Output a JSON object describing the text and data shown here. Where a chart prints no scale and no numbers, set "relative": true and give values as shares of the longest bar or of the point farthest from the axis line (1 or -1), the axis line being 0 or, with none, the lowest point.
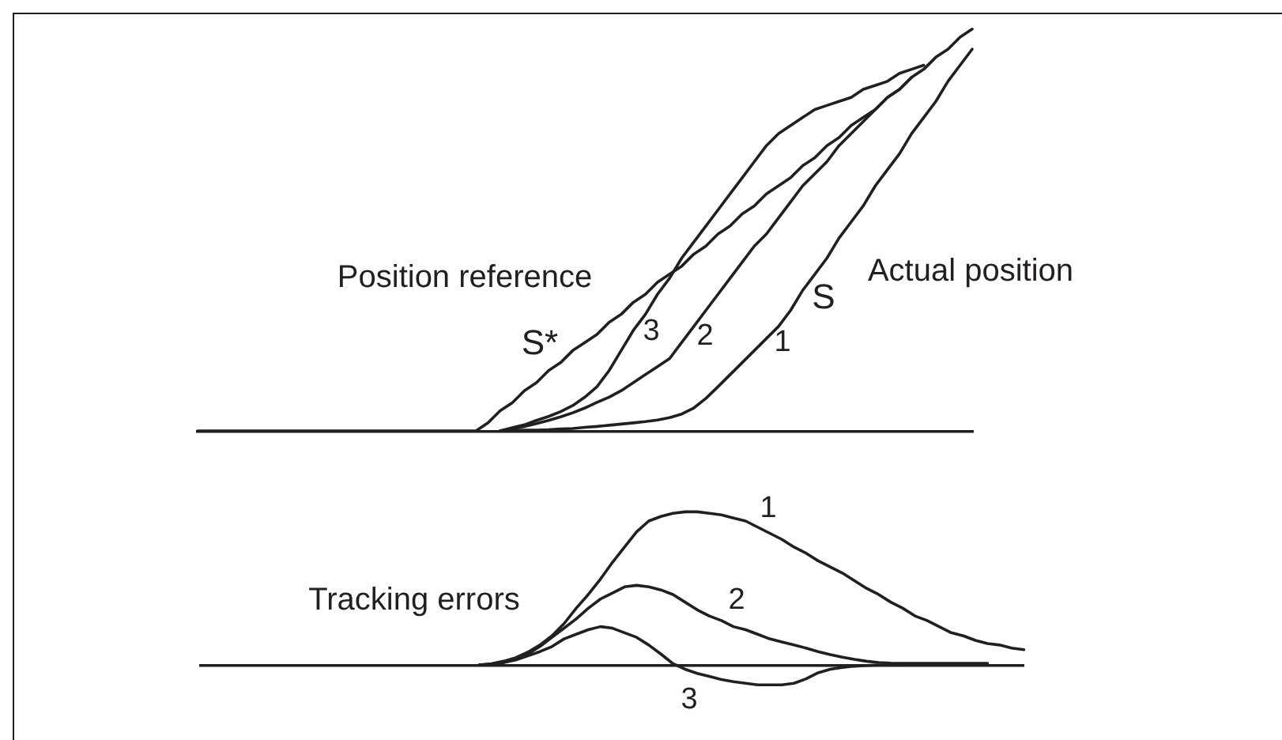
{
  "chart_data": [
    {
      "type": "line",
      "relative": true,
      "tick_labels": false,
      "categories": [
        null,
        null,
        null,
        null,
        null,
        null,
        null,
        null,
        null,
        null,
        null,
        null,
        null,
        null,
        null,
        null,
        null,
        null,
        null,
        null,
        null,
        null,
        null,
        null,
        null,
        null,
        null,
        null,
        null,
        null,
        null,
        null,
        null,
        null,
        null,
        null,
        null,
        null,
        null,
        null,
        null,
        null,
        null,
        null,
        null,
        null,
        null,
        null,
        null,
        null,
        null,
        null,
        null,
        null,
        null,
        null,
        null,
        null,
        null,
        null,
        null,
        null,
        null,
        null,
        null
      ],
      "series": [
        {
          "name": "S*",
          "color": "#231f20",
          "values": [
            0,
            0,
            0,
            0,
            0,
            0,
            0,
            0,
            0,
            0,
            0,
            0,
            0,
            0,
            0,
            0,
            0,
            0,
            0,
            0,
            0,
            0,
            0,
            0,
            0.02,
            0.05,
            0.07,
            0.1,
            0.12,
            0.15,
            0.17,
            0.2,
            0.22,
            0.24,
            0.27,
            0.29,
            0.32,
            0.34,
            0.37,
            0.39,
            0.41,
            0.44,
            0.46,
            0.49,
            0.51,
            0.54,
            0.56,
            0.59,
            0.61,
            0.63,
            0.66,
            0.68,
            0.71,
            0.73,
            0.76,
            0.78,
            0.8,
            0.83,
            0.85,
            0.88,
            0.9,
            0.93,
            0.95,
            0.98,
            1
          ]
        },
        {
          "name": "1",
          "color": "#231f20",
          "values": [
            null,
            null,
            null,
            null,
            null,
            null,
            null,
            null,
            null,
            null,
            null,
            null,
            null,
            null,
            null,
            null,
            null,
            null,
            null,
            null,
            null,
            null,
            null,
            null,
            null,
            0,
            0.001,
            0.002,
            0.002,
            0.003,
            0.005,
            0.006,
            0.009,
            0.011,
            0.014,
            0.017,
            0.02,
            0.023,
            0.027,
            0.033,
            0.042,
            0.057,
            0.081,
            0.11,
            0.14,
            0.17,
            0.2,
            0.23,
            0.26,
            0.3,
            0.35,
            0.39,
            0.43,
            0.48,
            0.52,
            0.56,
            0.61,
            0.65,
            0.69,
            0.74,
            0.78,
            0.82,
            0.87,
            0.91,
            0.95
          ]
        },
        {
          "name": "2",
          "color": "#231f20",
          "values": [
            null,
            null,
            null,
            null,
            null,
            null,
            null,
            null,
            null,
            null,
            null,
            null,
            null,
            null,
            null,
            null,
            null,
            null,
            null,
            null,
            null,
            null,
            null,
            null,
            null,
            0,
            0.005,
            0.011,
            0.018,
            0.026,
            0.035,
            0.045,
            0.057,
            0.071,
            0.084,
            0.1,
            0.12,
            0.14,
            0.16,
            0.18,
            0.22,
            0.26,
            0.3,
            0.34,
            0.38,
            0.42,
            0.46,
            0.49,
            0.53,
            0.57,
            0.61,
            0.64,
            0.67,
            0.71,
            0.74,
            0.77,
            0.8,
            0.83,
            0.85,
            0.88,
            null,
            null,
            null,
            null,
            null
          ]
        },
        {
          "name": "3",
          "color": "#231f20",
          "values": [
            null,
            null,
            null,
            null,
            null,
            null,
            null,
            null,
            null,
            null,
            null,
            null,
            null,
            null,
            null,
            null,
            null,
            null,
            null,
            null,
            null,
            null,
            null,
            null,
            null,
            0,
            0.008,
            0.015,
            0.026,
            0.036,
            0.048,
            0.063,
            0.084,
            0.11,
            0.15,
            0.2,
            0.25,
            0.29,
            0.34,
            0.38,
            0.43,
            0.47,
            0.51,
            0.55,
            0.59,
            0.63,
            0.67,
            0.71,
            0.74,
            0.76,
            0.78,
            0.8,
            0.81,
            0.82,
            0.83,
            0.85,
            0.86,
            0.87,
            0.89,
            0.9,
            0.91,
            null,
            null,
            null,
            null
          ]
        }
      ],
      "annotations": [
        "Position reference",
        "Actual position",
        "S"
      ]
    },
    {
      "type": "line",
      "relative": true,
      "tick_labels": false,
      "categories": [
        null,
        null,
        null,
        null,
        null,
        null,
        null,
        null,
        null,
        null,
        null,
        null,
        null,
        null,
        null,
        null,
        null,
        null,
        null,
        null,
        null,
        null,
        null,
        null,
        null,
        null,
        null,
        null,
        null,
        null,
        null,
        null,
        null,
        null,
        null,
        null,
        null,
        null,
        null,
        null,
        null,
        null,
        null,
        null,
        null,
        null,
        null,
        null,
        null,
        null,
        null,
        null,
        null,
        null,
        null,
        null,
        null,
        null,
        null,
        null,
        null,
        null,
        null,
        null,
        null,
        null,
        null,
        null,
        null
      ],
      "series": [
        {
          "name": "1",
          "color": "#231f20",
          "values": [
            null,
            null,
            null,
            null,
            null,
            null,
            null,
            null,
            null,
            null,
            null,
            null,
            null,
            null,
            null,
            null,
            null,
            null,
            null,
            null,
            null,
            null,
            null,
            0,
            0.008,
            0.024,
            0.047,
            0.083,
            0.13,
            0.19,
            0.27,
            0.37,
            0.46,
            0.56,
            0.67,
            0.77,
            0.87,
            0.94,
            0.97,
            0.99,
            1,
            1,
            0.99,
            0.98,
            0.96,
            0.94,
            0.9,
            0.86,
            0.82,
            0.77,
            0.73,
            0.68,
            0.64,
            0.6,
            0.55,
            0.5,
            0.46,
            0.41,
            0.37,
            0.32,
            0.29,
            0.25,
            0.21,
            0.19,
            0.16,
            0.14,
            0.13,
            0.11,
            0.1
          ]
        },
        {
          "name": "2",
          "color": "#231f20",
          "values": [
            null,
            null,
            null,
            null,
            null,
            null,
            null,
            null,
            null,
            null,
            null,
            null,
            null,
            null,
            null,
            null,
            null,
            null,
            null,
            null,
            null,
            null,
            null,
            0,
            0.004,
            0.016,
            0.04,
            0.071,
            0.12,
            0.18,
            0.24,
            0.3,
            0.37,
            0.43,
            0.47,
            0.51,
            0.52,
            0.51,
            0.49,
            0.46,
            0.41,
            0.36,
            0.32,
            0.29,
            0.25,
            0.23,
            0.2,
            0.17,
            0.15,
            0.13,
            0.11,
            0.087,
            0.067,
            0.051,
            0.036,
            0.024,
            0.016,
            0.012,
            0.01,
            0.01,
            0.01,
            0.01,
            0.01,
            0.01,
            0.01,
            0.01,
            null,
            null,
            null
          ]
        },
        {
          "name": "3",
          "color": "#231f20",
          "values": [
            null,
            null,
            null,
            null,
            null,
            null,
            null,
            null,
            null,
            null,
            null,
            null,
            null,
            null,
            null,
            null,
            null,
            null,
            null,
            null,
            null,
            null,
            null,
            0,
            0.004,
            0.016,
            0.032,
            0.059,
            0.087,
            0.12,
            0.17,
            0.2,
            0.23,
            0.25,
            0.24,
            0.21,
            0.18,
            0.13,
            0.071,
            0.008,
            -0.028,
            -0.055,
            -0.075,
            -0.095,
            -0.11,
            -0.12,
            -0.13,
            -0.13,
            -0.13,
            -0.12,
            -0.091,
            -0.051,
            -0.028,
            -0.016,
            -0.008,
            -0.004,
            0,
            null,
            null,
            null,
            null,
            null,
            null,
            null,
            null,
            null,
            null,
            null,
            null
          ]
        }
      ],
      "annotations": [
        "Tracking errors"
      ]
    }
  ]
}
